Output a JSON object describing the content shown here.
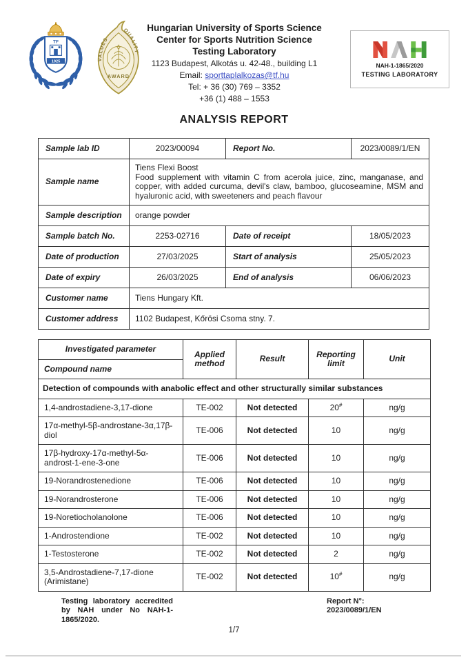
{
  "page": {
    "title": "ANALYSIS REPORT",
    "page_number": "1/7"
  },
  "header": {
    "org_line1": "Hungarian University of Sports Science",
    "org_line2": "Center for Sports Nutrition Science",
    "org_line3": "Testing Laboratory",
    "address": "1123 Budapest, Alkotás u. 42-48., building L1",
    "email_label": "Email: ",
    "email": "sporttaplalkozas@tf.hu",
    "tel_line1": "Tel: + 36 (30) 769 – 3352",
    "tel_line2": "+36 (1) 488 – 1553",
    "tf_crest": {
      "initials": "TF",
      "year": "1925"
    },
    "award_badge": {
      "arc_left": "VALUES",
      "arc_right": "QUALITY",
      "bottom": "AWARD"
    },
    "nah_badge": {
      "accreditation_no": "NAH-1-1865/2020",
      "label": "TESTING LABORATORY"
    }
  },
  "colors": {
    "nah_red": "#e25141",
    "nah_red_dark": "#c9372a",
    "nah_gray": "#c7c7c7",
    "nah_gray_dark": "#9b9b9b",
    "nah_green": "#6cbf4a",
    "nah_green_dark": "#3f9b3a",
    "link_blue": "#3b4ec4",
    "crest_blue": "#2e5fa8",
    "crest_gold": "#e3b04b"
  },
  "sample_table": {
    "r1": {
      "l1": "Sample lab ID",
      "v1": "2023/00094",
      "l2": "Report No.",
      "v2": "2023/0089/1/EN"
    },
    "r2": {
      "l1": "Sample name",
      "line1": "Tiens Flexi Boost",
      "line2": "Food supplement with vitamin C from acerola juice, zinc, manganase, and copper, with added curcuma, devil's claw, bamboo, glucoseamine, MSM and hyaluronic acid, with sweeteners and peach flavour"
    },
    "r3": {
      "l1": "Sample description",
      "v": "orange powder"
    },
    "r4": {
      "l1": "Sample batch No.",
      "v1": "2253-02716",
      "l2": "Date of receipt",
      "v2": "18/05/2023"
    },
    "r5": {
      "l1": "Date of production",
      "v1": "27/03/2025",
      "l2": "Start of analysis",
      "v2": "25/05/2023"
    },
    "r6": {
      "l1": "Date of expiry",
      "v1": "26/03/2025",
      "l2": "End of analysis",
      "v2": "06/06/2023"
    },
    "r7": {
      "l1": "Customer name",
      "v": "Tiens Hungary Kft."
    },
    "r8": {
      "l1": "Customer address",
      "v": "1102 Budapest, Kőrösi Csoma stny. 7."
    }
  },
  "results_table": {
    "header": {
      "investigated": "Investigated parameter",
      "compound": "Compound name",
      "method": "Applied method",
      "result": "Result",
      "limit": "Reporting limit",
      "unit": "Unit"
    },
    "section": "Detection of compounds with anabolic effect and other structurally similar substances",
    "rows": [
      {
        "compound": "1,4-androstadiene-3,17-dione",
        "method": "TE-002",
        "result": "Not detected",
        "limit": "20",
        "limit_sup": "#",
        "unit": "ng/g"
      },
      {
        "compound": "17α-methyl-5β-androstane-3α,17β-diol",
        "method": "TE-006",
        "result": "Not detected",
        "limit": "10",
        "limit_sup": "",
        "unit": "ng/g"
      },
      {
        "compound": "17β-hydroxy-17α-methyl-5α-androst-1-ene-3-one",
        "method": "TE-006",
        "result": "Not detected",
        "limit": "10",
        "limit_sup": "",
        "unit": "ng/g"
      },
      {
        "compound": "19-Norandrostenedione",
        "method": "TE-006",
        "result": "Not detected",
        "limit": "10",
        "limit_sup": "",
        "unit": "ng/g"
      },
      {
        "compound": "19-Norandrosterone",
        "method": "TE-006",
        "result": "Not detected",
        "limit": "10",
        "limit_sup": "",
        "unit": "ng/g"
      },
      {
        "compound": "19-Noretiocholanolone",
        "method": "TE-006",
        "result": "Not detected",
        "limit": "10",
        "limit_sup": "",
        "unit": "ng/g"
      },
      {
        "compound": "1-Androstendione",
        "method": "TE-002",
        "result": "Not detected",
        "limit": "10",
        "limit_sup": "",
        "unit": "ng/g"
      },
      {
        "compound": "1-Testosterone",
        "method": "TE-002",
        "result": "Not detected",
        "limit": "2",
        "limit_sup": "",
        "unit": "ng/g"
      },
      {
        "compound": "3,5-Androstadiene-7,17-dione (Arimistane)",
        "method": "TE-002",
        "result": "Not detected",
        "limit": "10",
        "limit_sup": "#",
        "unit": "ng/g"
      }
    ]
  },
  "footer": {
    "accreditation": "Testing laboratory accredited by NAH under No NAH-1-1865/2020.",
    "report_label": "Report N°:",
    "report_value": "2023/0089/1/EN"
  }
}
